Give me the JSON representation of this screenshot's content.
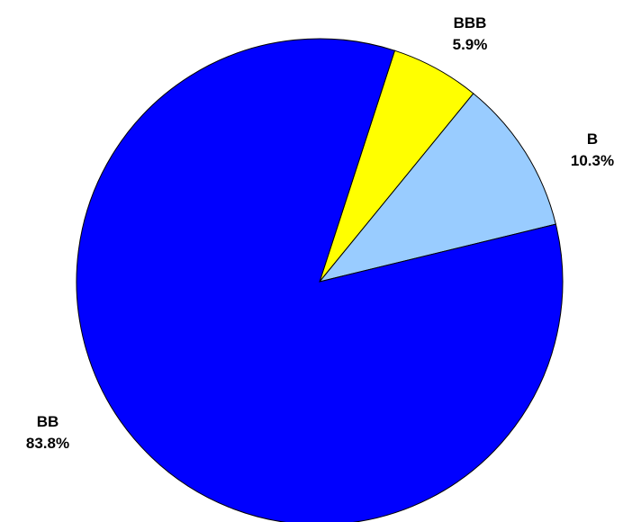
{
  "chart_data": {
    "type": "pie",
    "title": "",
    "start_angle_deg": -72,
    "direction": "clockwise",
    "slices": [
      {
        "category": "BBB",
        "value": 5.9,
        "label": "5.9%",
        "color": "#ffff00"
      },
      {
        "category": "B",
        "value": 10.3,
        "label": "10.3%",
        "color": "#99ccff"
      },
      {
        "category": "BB",
        "value": 83.8,
        "label": "83.8%",
        "color": "#0000ff"
      }
    ],
    "legend": "none",
    "slice_outline_color": "#000000"
  }
}
